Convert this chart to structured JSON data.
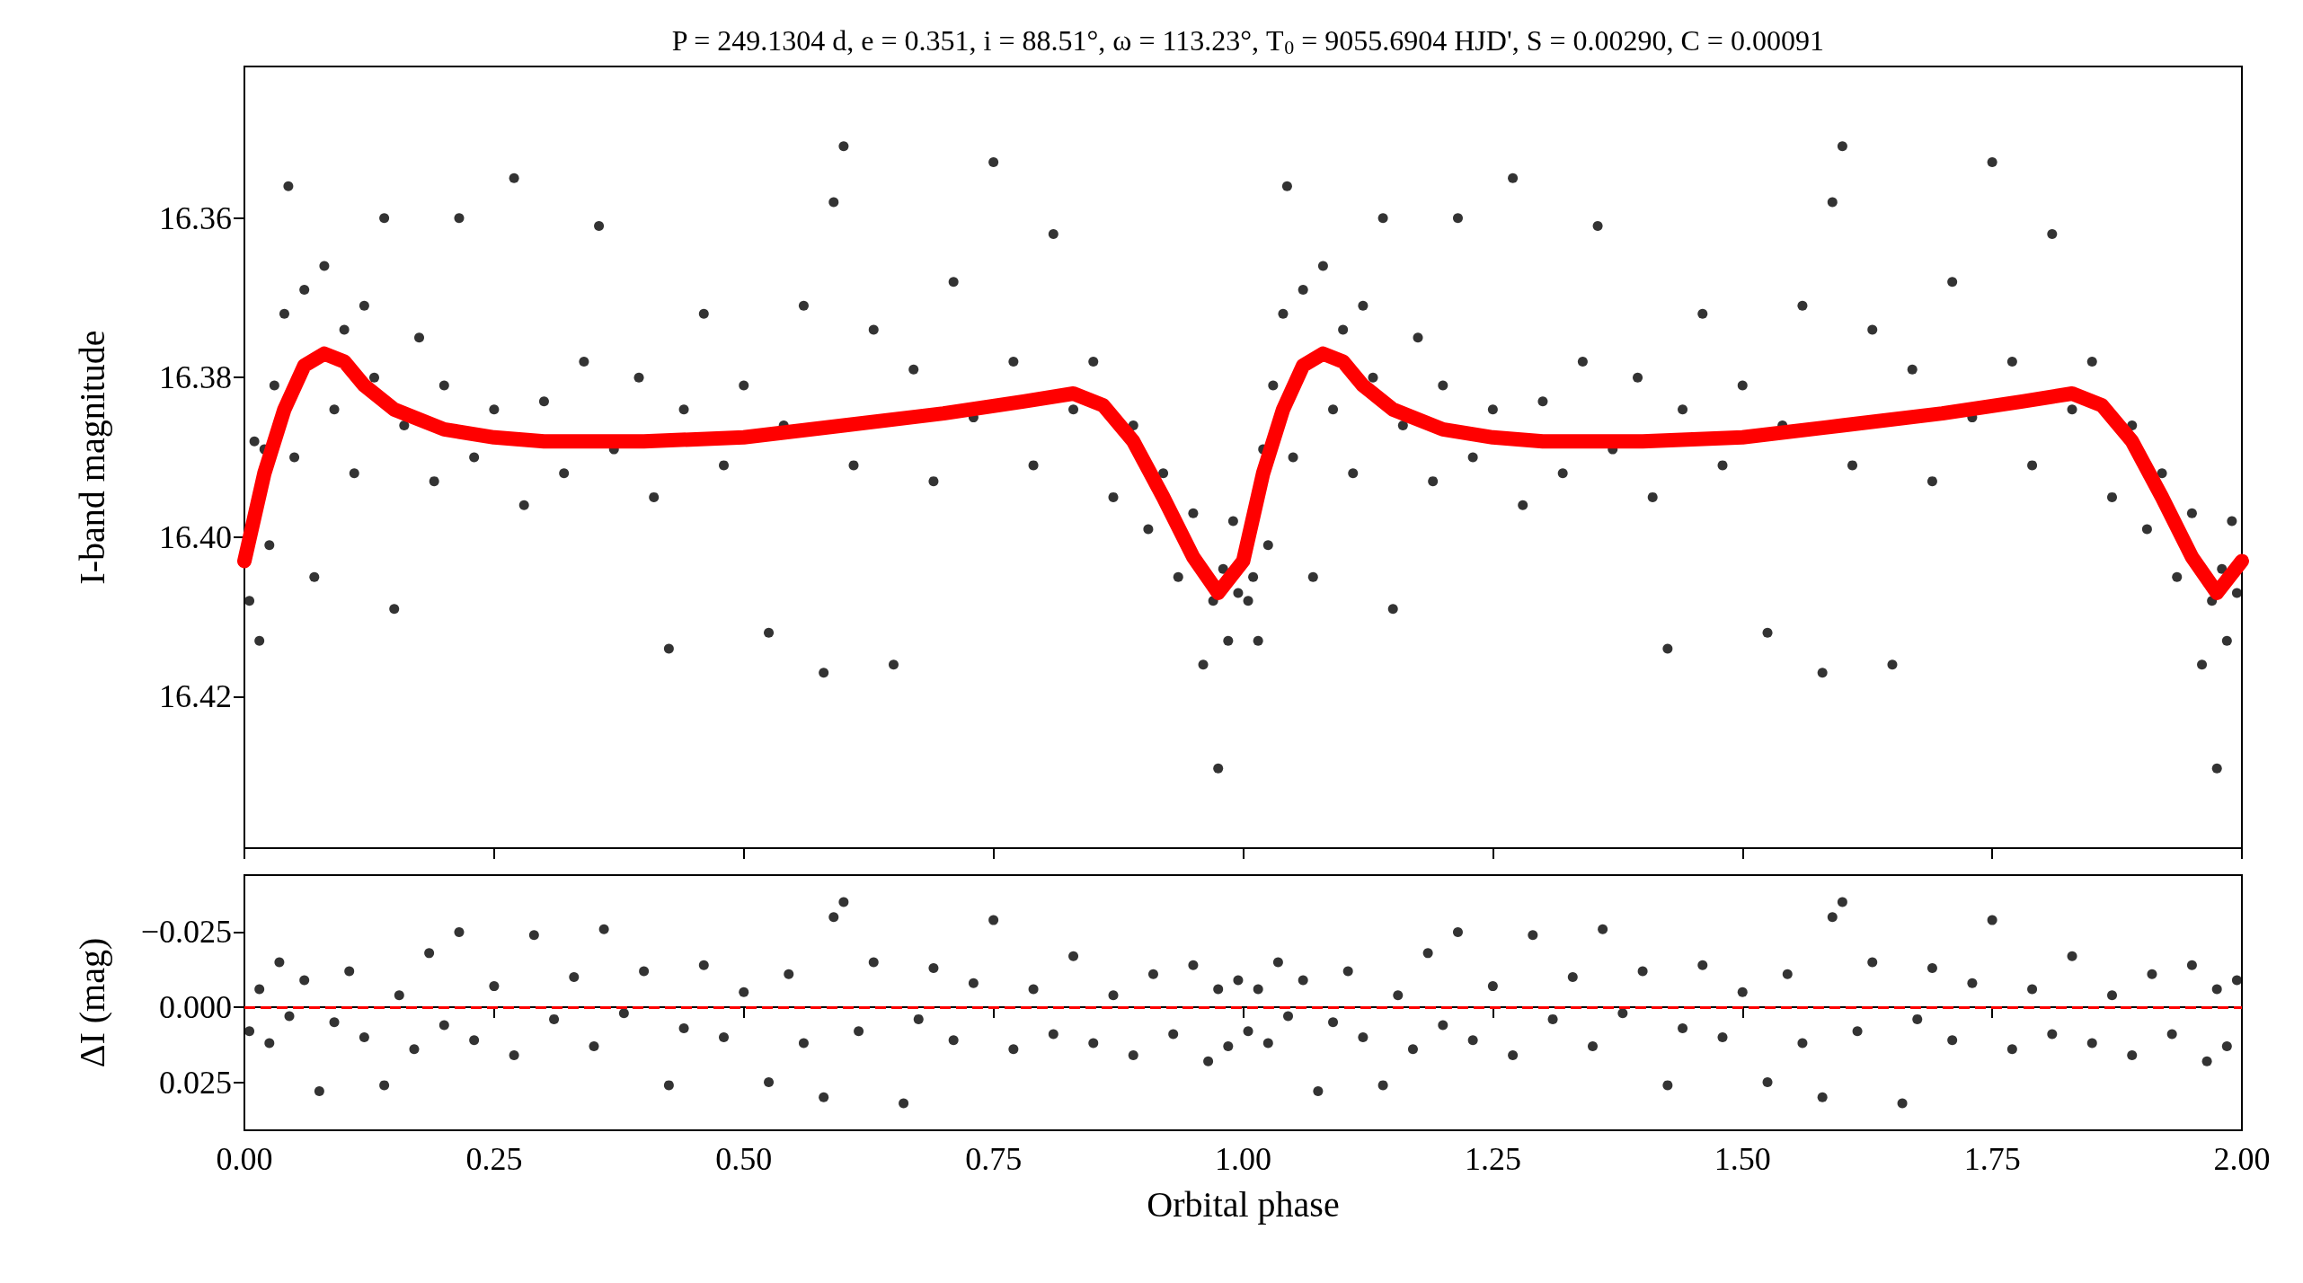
{
  "chart_data": [
    {
      "type": "scatter",
      "title": "P = 249.1304 d, e = 0.351, i = 88.51°, ω = 113.23°, T$_{0}$ = 9055.6904 HJD', S = 0.00290, C = 0.00091",
      "ylabel": "I-band magnitude",
      "tick_labels": "y",
      "xlim": [
        0,
        2
      ],
      "xticks": [
        0,
        0.25,
        0.5,
        0.75,
        1,
        1.25,
        1.5,
        1.75,
        2
      ],
      "ylim": [
        16.439,
        16.341
      ],
      "yticks": [
        16.36,
        16.38,
        {
          "value": 16.4,
          "label": "16.40"
        },
        16.42
      ],
      "series": [
        {
          "type": "scatter",
          "color": "#000000",
          "marker": "circle",
          "x": [
            0.005,
            0.01,
            0.015,
            0.02,
            0.025,
            0.03,
            0.04,
            0.044,
            0.05,
            0.06,
            0.07,
            0.08,
            0.09,
            0.1,
            0.11,
            0.12,
            0.13,
            0.14,
            0.15,
            0.16,
            0.175,
            0.19,
            0.2,
            0.215,
            0.23,
            0.25,
            0.27,
            0.28,
            0.3,
            0.32,
            0.34,
            0.355,
            0.37,
            0.395,
            0.41,
            0.425,
            0.44,
            0.46,
            0.48,
            0.5,
            0.525,
            0.54,
            0.56,
            0.58,
            0.59,
            0.6,
            0.61,
            0.63,
            0.65,
            0.67,
            0.69,
            0.71,
            0.73,
            0.75,
            0.77,
            0.79,
            0.81,
            0.83,
            0.85,
            0.87,
            0.89,
            0.905,
            0.92,
            0.935,
            0.95,
            0.96,
            0.97,
            0.975,
            0.98,
            0.985,
            0.99,
            0.995,
            1.005,
            1.01,
            1.015,
            1.02,
            1.025,
            1.03,
            1.04,
            1.044,
            1.05,
            1.06,
            1.07,
            1.08,
            1.09,
            1.1,
            1.11,
            1.12,
            1.13,
            1.14,
            1.15,
            1.16,
            1.175,
            1.19,
            1.2,
            1.215,
            1.23,
            1.25,
            1.27,
            1.28,
            1.3,
            1.32,
            1.34,
            1.355,
            1.37,
            1.395,
            1.41,
            1.425,
            1.44,
            1.46,
            1.48,
            1.5,
            1.525,
            1.54,
            1.56,
            1.58,
            1.59,
            1.6,
            1.61,
            1.63,
            1.65,
            1.67,
            1.69,
            1.71,
            1.73,
            1.75,
            1.77,
            1.79,
            1.81,
            1.83,
            1.85,
            1.87,
            1.89,
            1.905,
            1.92,
            1.935,
            1.95,
            1.96,
            1.97,
            1.975,
            1.98,
            1.985,
            1.99,
            1.995
          ],
          "values": [
            16.408,
            16.388,
            16.413,
            16.389,
            16.401,
            16.381,
            16.372,
            16.356,
            16.39,
            16.369,
            16.405,
            16.366,
            16.384,
            16.374,
            16.392,
            16.371,
            16.38,
            16.36,
            16.409,
            16.386,
            16.375,
            16.393,
            16.381,
            16.36,
            16.39,
            16.384,
            16.355,
            16.396,
            16.383,
            16.392,
            16.378,
            16.361,
            16.389,
            16.38,
            16.395,
            16.414,
            16.384,
            16.372,
            16.391,
            16.381,
            16.412,
            16.386,
            16.371,
            16.417,
            16.358,
            16.351,
            16.391,
            16.374,
            16.416,
            16.379,
            16.393,
            16.368,
            16.385,
            16.353,
            16.378,
            16.391,
            16.362,
            16.384,
            16.378,
            16.395,
            16.386,
            16.399,
            16.392,
            16.405,
            16.397,
            16.416,
            16.408,
            16.429,
            16.404,
            16.413,
            16.398,
            16.407,
            16.408,
            16.405,
            16.413,
            16.389,
            16.401,
            16.381,
            16.372,
            16.356,
            16.39,
            16.369,
            16.405,
            16.366,
            16.384,
            16.374,
            16.392,
            16.371,
            16.38,
            16.36,
            16.409,
            16.386,
            16.375,
            16.393,
            16.381,
            16.36,
            16.39,
            16.384,
            16.355,
            16.396,
            16.383,
            16.392,
            16.378,
            16.361,
            16.389,
            16.38,
            16.395,
            16.414,
            16.384,
            16.372,
            16.391,
            16.381,
            16.412,
            16.386,
            16.371,
            16.417,
            16.358,
            16.351,
            16.391,
            16.374,
            16.416,
            16.379,
            16.393,
            16.368,
            16.385,
            16.353,
            16.378,
            16.391,
            16.362,
            16.384,
            16.378,
            16.395,
            16.386,
            16.399,
            16.392,
            16.405,
            16.397,
            16.416,
            16.408,
            16.429,
            16.404,
            16.413,
            16.398,
            16.407
          ]
        },
        {
          "type": "line",
          "color": "#ff0000",
          "marker": "none",
          "line_style": "solid",
          "x": [
            0,
            0.02,
            0.04,
            0.06,
            0.08,
            0.1,
            0.12,
            0.15,
            0.2,
            0.25,
            0.3,
            0.4,
            0.5,
            0.6,
            0.7,
            0.78,
            0.83,
            0.86,
            0.89,
            0.92,
            0.95,
            0.975,
            1,
            1.02,
            1.04,
            1.06,
            1.08,
            1.1,
            1.12,
            1.15,
            1.2,
            1.25,
            1.3,
            1.4,
            1.5,
            1.6,
            1.7,
            1.78,
            1.83,
            1.86,
            1.89,
            1.92,
            1.95,
            1.975,
            2
          ],
          "values": [
            16.403,
            16.392,
            16.384,
            16.3785,
            16.377,
            16.378,
            16.381,
            16.384,
            16.3865,
            16.3875,
            16.388,
            16.388,
            16.3875,
            16.386,
            16.3845,
            16.383,
            16.382,
            16.3835,
            16.388,
            16.395,
            16.4025,
            16.407,
            16.403,
            16.392,
            16.384,
            16.3785,
            16.377,
            16.378,
            16.381,
            16.384,
            16.3865,
            16.3875,
            16.388,
            16.388,
            16.3875,
            16.386,
            16.3845,
            16.383,
            16.382,
            16.3835,
            16.388,
            16.395,
            16.4025,
            16.407,
            16.403
          ]
        }
      ]
    },
    {
      "type": "scatter",
      "xlabel": "Orbital phase",
      "ylabel": "ΔI (mag)",
      "marker": "circle",
      "xlim": [
        0,
        2
      ],
      "xticks": [
        {
          "value": 0,
          "label": "0.00"
        },
        {
          "value": 0.25,
          "label": "0.25"
        },
        {
          "value": 0.5,
          "label": "0.50"
        },
        {
          "value": 0.75,
          "label": "0.75"
        },
        {
          "value": 1,
          "label": "1.00"
        },
        {
          "value": 1.25,
          "label": "1.25"
        },
        {
          "value": 1.5,
          "label": "1.50"
        },
        {
          "value": 1.75,
          "label": "1.75"
        },
        {
          "value": 2,
          "label": "2.00"
        }
      ],
      "ylim": [
        0.041,
        -0.044
      ],
      "yticks": [
        {
          "value": -0.025,
          "label": "−0.025"
        },
        {
          "value": 0,
          "label": "0.000"
        },
        0.025
      ],
      "ref_lines": [
        {
          "axis": "y",
          "value": 0,
          "color": "#ff0000",
          "line_style": "dashed"
        }
      ],
      "series": [
        {
          "type": "scatter",
          "color": "#000000",
          "x": [
            0.005,
            0.015,
            0.025,
            0.035,
            0.045,
            0.06,
            0.075,
            0.09,
            0.105,
            0.12,
            0.14,
            0.155,
            0.17,
            0.185,
            0.2,
            0.215,
            0.23,
            0.25,
            0.27,
            0.29,
            0.31,
            0.33,
            0.35,
            0.36,
            0.38,
            0.4,
            0.425,
            0.44,
            0.46,
            0.48,
            0.5,
            0.525,
            0.545,
            0.56,
            0.58,
            0.59,
            0.6,
            0.615,
            0.63,
            0.66,
            0.675,
            0.69,
            0.71,
            0.73,
            0.75,
            0.77,
            0.79,
            0.81,
            0.83,
            0.85,
            0.87,
            0.89,
            0.91,
            0.93,
            0.95,
            0.965,
            0.975,
            0.985,
            0.995,
            1.005,
            1.015,
            1.025,
            1.035,
            1.045,
            1.06,
            1.075,
            1.09,
            1.105,
            1.12,
            1.14,
            1.155,
            1.17,
            1.185,
            1.2,
            1.215,
            1.23,
            1.25,
            1.27,
            1.29,
            1.31,
            1.33,
            1.35,
            1.36,
            1.38,
            1.4,
            1.425,
            1.44,
            1.46,
            1.48,
            1.5,
            1.525,
            1.545,
            1.56,
            1.58,
            1.59,
            1.6,
            1.615,
            1.63,
            1.66,
            1.675,
            1.69,
            1.71,
            1.73,
            1.75,
            1.77,
            1.79,
            1.81,
            1.83,
            1.85,
            1.87,
            1.89,
            1.91,
            1.93,
            1.95,
            1.965,
            1.975,
            1.985,
            1.995
          ],
          "values": [
            0.008,
            -0.006,
            0.012,
            -0.015,
            0.003,
            -0.009,
            0.028,
            0.005,
            -0.012,
            0.01,
            0.026,
            -0.004,
            0.014,
            -0.018,
            0.006,
            -0.025,
            0.011,
            -0.007,
            0.016,
            -0.024,
            0.004,
            -0.01,
            0.013,
            -0.026,
            0.002,
            -0.012,
            0.026,
            0.007,
            -0.014,
            0.01,
            -0.005,
            0.025,
            -0.011,
            0.012,
            0.03,
            -0.03,
            -0.035,
            0.008,
            -0.015,
            0.032,
            0.004,
            -0.013,
            0.011,
            -0.008,
            -0.029,
            0.014,
            -0.006,
            0.009,
            -0.017,
            0.012,
            -0.004,
            0.016,
            -0.011,
            0.009,
            -0.014,
            0.018,
            -0.006,
            0.013,
            -0.009,
            0.008,
            -0.006,
            0.012,
            -0.015,
            0.003,
            -0.009,
            0.028,
            0.005,
            -0.012,
            0.01,
            0.026,
            -0.004,
            0.014,
            -0.018,
            0.006,
            -0.025,
            0.011,
            -0.007,
            0.016,
            -0.024,
            0.004,
            -0.01,
            0.013,
            -0.026,
            0.002,
            -0.012,
            0.026,
            0.007,
            -0.014,
            0.01,
            -0.005,
            0.025,
            -0.011,
            0.012,
            0.03,
            -0.03,
            -0.035,
            0.008,
            -0.015,
            0.032,
            0.004,
            -0.013,
            0.011,
            -0.008,
            -0.029,
            0.014,
            -0.006,
            0.009,
            -0.017,
            0.012,
            -0.004,
            0.016,
            -0.011,
            0.009,
            -0.014,
            0.018,
            -0.006,
            0.013,
            -0.009
          ]
        }
      ]
    }
  ]
}
